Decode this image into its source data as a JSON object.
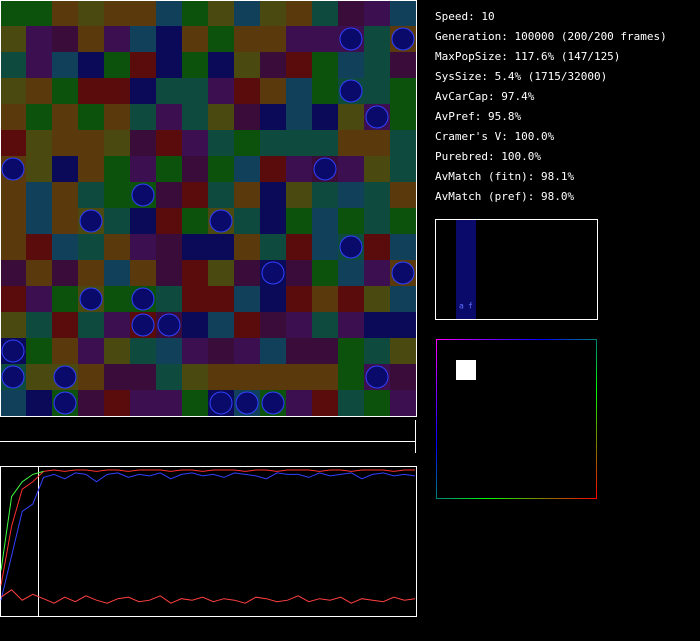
{
  "stats": [
    "Speed: 10",
    "Generation: 100000 (200/200 frames)",
    "MaxPopSize: 117.6% (147/125)",
    "SysSize: 5.4% (1715/32000)",
    "AvCarCap: 97.4%",
    "AvPref: 95.8%",
    "Cramer's V: 100.0%",
    "Purebred: 100.0%",
    "AvMatch (fitn): 98.1%",
    "AvMatch (pref): 98.0%"
  ],
  "mini_labels": [
    "a",
    "f"
  ],
  "history": {
    "ylim": [
      0,
      100
    ],
    "series": [
      {
        "color": "#ff3030",
        "values": [
          20,
          60,
          85,
          90,
          97,
          98,
          97,
          98,
          98,
          97,
          98,
          98,
          97,
          98,
          98,
          98,
          97,
          98,
          98,
          97,
          98,
          98,
          98,
          97,
          98,
          98,
          97,
          98,
          98,
          98,
          97,
          98,
          98,
          97,
          98,
          98,
          98,
          97,
          98,
          98
        ]
      },
      {
        "color": "#3040ff",
        "values": [
          10,
          40,
          70,
          75,
          93,
          95,
          92,
          96,
          95,
          90,
          95,
          96,
          93,
          95,
          94,
          96,
          92,
          95,
          96,
          94,
          95,
          93,
          96,
          95,
          94,
          92,
          96,
          95,
          95,
          93,
          96,
          94,
          95,
          96,
          92,
          95,
          96,
          94,
          95,
          94
        ]
      },
      {
        "color": "#40ff40",
        "values": [
          30,
          80,
          90,
          95,
          97,
          null,
          null,
          null,
          null,
          null,
          null,
          null,
          null,
          null,
          null,
          null,
          null,
          null,
          null,
          null,
          null,
          null,
          null,
          null,
          null,
          null,
          null,
          null,
          null,
          null,
          null,
          null,
          null,
          null,
          null,
          null,
          null,
          null,
          null,
          null
        ]
      },
      {
        "color": "#ff4040",
        "values": [
          12,
          17,
          10,
          14,
          11,
          8,
          12,
          9,
          13,
          10,
          8,
          11,
          12,
          9,
          10,
          13,
          8,
          11,
          10,
          12,
          9,
          11,
          10,
          8,
          12,
          11,
          9,
          10,
          13,
          9,
          11,
          10,
          12,
          8,
          11,
          10,
          9,
          12,
          10,
          11
        ]
      }
    ]
  }
}
